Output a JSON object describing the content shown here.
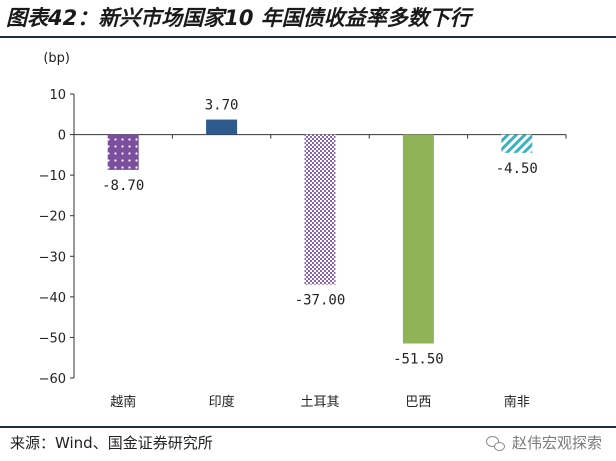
{
  "title": "图表42：新兴市场国家10 年国债收益率多数下行",
  "source": "来源：Wind、国金证券研究所",
  "watermark": "赵伟宏观探索",
  "chart_data": {
    "type": "bar",
    "unit_label": "(bp)",
    "categories": [
      "越南",
      "印度",
      "土耳其",
      "巴西",
      "南非"
    ],
    "values": [
      -8.7,
      3.7,
      -37.0,
      -51.5,
      -4.5
    ],
    "value_labels": [
      "-8.70",
      "3.70",
      "-37.00",
      "-51.50",
      "-4.50"
    ],
    "ylim": [
      -60,
      10
    ],
    "yticks": [
      10,
      0,
      -10,
      -20,
      -30,
      -40,
      -50,
      -60
    ],
    "ytick_labels": [
      "10",
      "0",
      "−10",
      "−20",
      "−30",
      "−40",
      "−50",
      "−60"
    ],
    "bar_styles": [
      {
        "fill": "#7b4e9e",
        "pattern": "dots"
      },
      {
        "fill": "#2e5a8c",
        "pattern": "solid"
      },
      {
        "fill": "#8a63b0",
        "pattern": "checker"
      },
      {
        "fill": "#8fb458",
        "pattern": "solid"
      },
      {
        "fill": "#35b3c2",
        "pattern": "diagonal"
      }
    ],
    "grid": false,
    "legend": "none"
  }
}
